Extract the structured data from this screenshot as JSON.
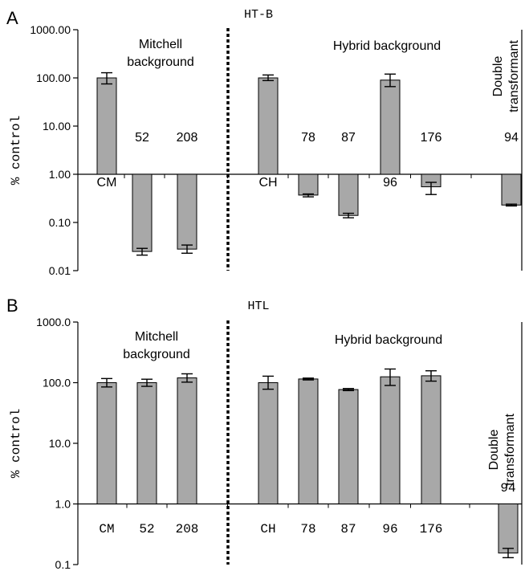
{
  "figure": {
    "panels": [
      "A",
      "B"
    ]
  },
  "chart_data": [
    {
      "panel": "A",
      "type": "bar",
      "title": "HT-B",
      "ylabel": "% control",
      "yscale": "log",
      "ylim": [
        0.01,
        1000
      ],
      "baseline": 1,
      "yticks": [
        "0.01",
        "0.10",
        "1.00",
        "10.00",
        "100.00",
        "1000.00"
      ],
      "categories": [
        "CM",
        "52",
        "208",
        "CH",
        "78",
        "87",
        "96",
        "176",
        "94"
      ],
      "values": [
        100,
        0.025,
        0.028,
        100,
        0.37,
        0.14,
        90,
        0.55,
        0.23
      ],
      "err_low": [
        75,
        0.021,
        0.023,
        88,
        0.34,
        0.125,
        66,
        0.38,
        0.22
      ],
      "err_high": [
        128,
        0.029,
        0.034,
        115,
        0.39,
        0.155,
        120,
        0.68,
        0.24
      ],
      "groups": {
        "mitchell": [
          "Mitchell",
          "background"
        ],
        "hybrid": "Hybrid background",
        "double": [
          "Double",
          "transformant"
        ]
      },
      "grid": false,
      "legend": "none"
    },
    {
      "panel": "B",
      "type": "bar",
      "title": "HTL",
      "ylabel": "% control",
      "yscale": "log",
      "ylim": [
        0.1,
        1000
      ],
      "baseline": 1,
      "yticks": [
        "0.1",
        "1.0",
        "10.0",
        "100.0",
        "1000.0"
      ],
      "categories": [
        "CM",
        "52",
        "208",
        "CH",
        "78",
        "87",
        "96",
        "176",
        "94"
      ],
      "values": [
        100,
        100,
        120,
        100,
        115,
        77,
        125,
        130,
        0.155
      ],
      "err_low": [
        85,
        87,
        102,
        78,
        111,
        74,
        90,
        106,
        0.13
      ],
      "err_high": [
        117,
        114,
        140,
        128,
        119,
        80,
        168,
        157,
        0.185
      ],
      "groups": {
        "mitchell": [
          "Mitchell",
          "background"
        ],
        "hybrid": "Hybrid background",
        "double": [
          "Double",
          "transformant"
        ]
      },
      "grid": false,
      "legend": "none"
    }
  ]
}
